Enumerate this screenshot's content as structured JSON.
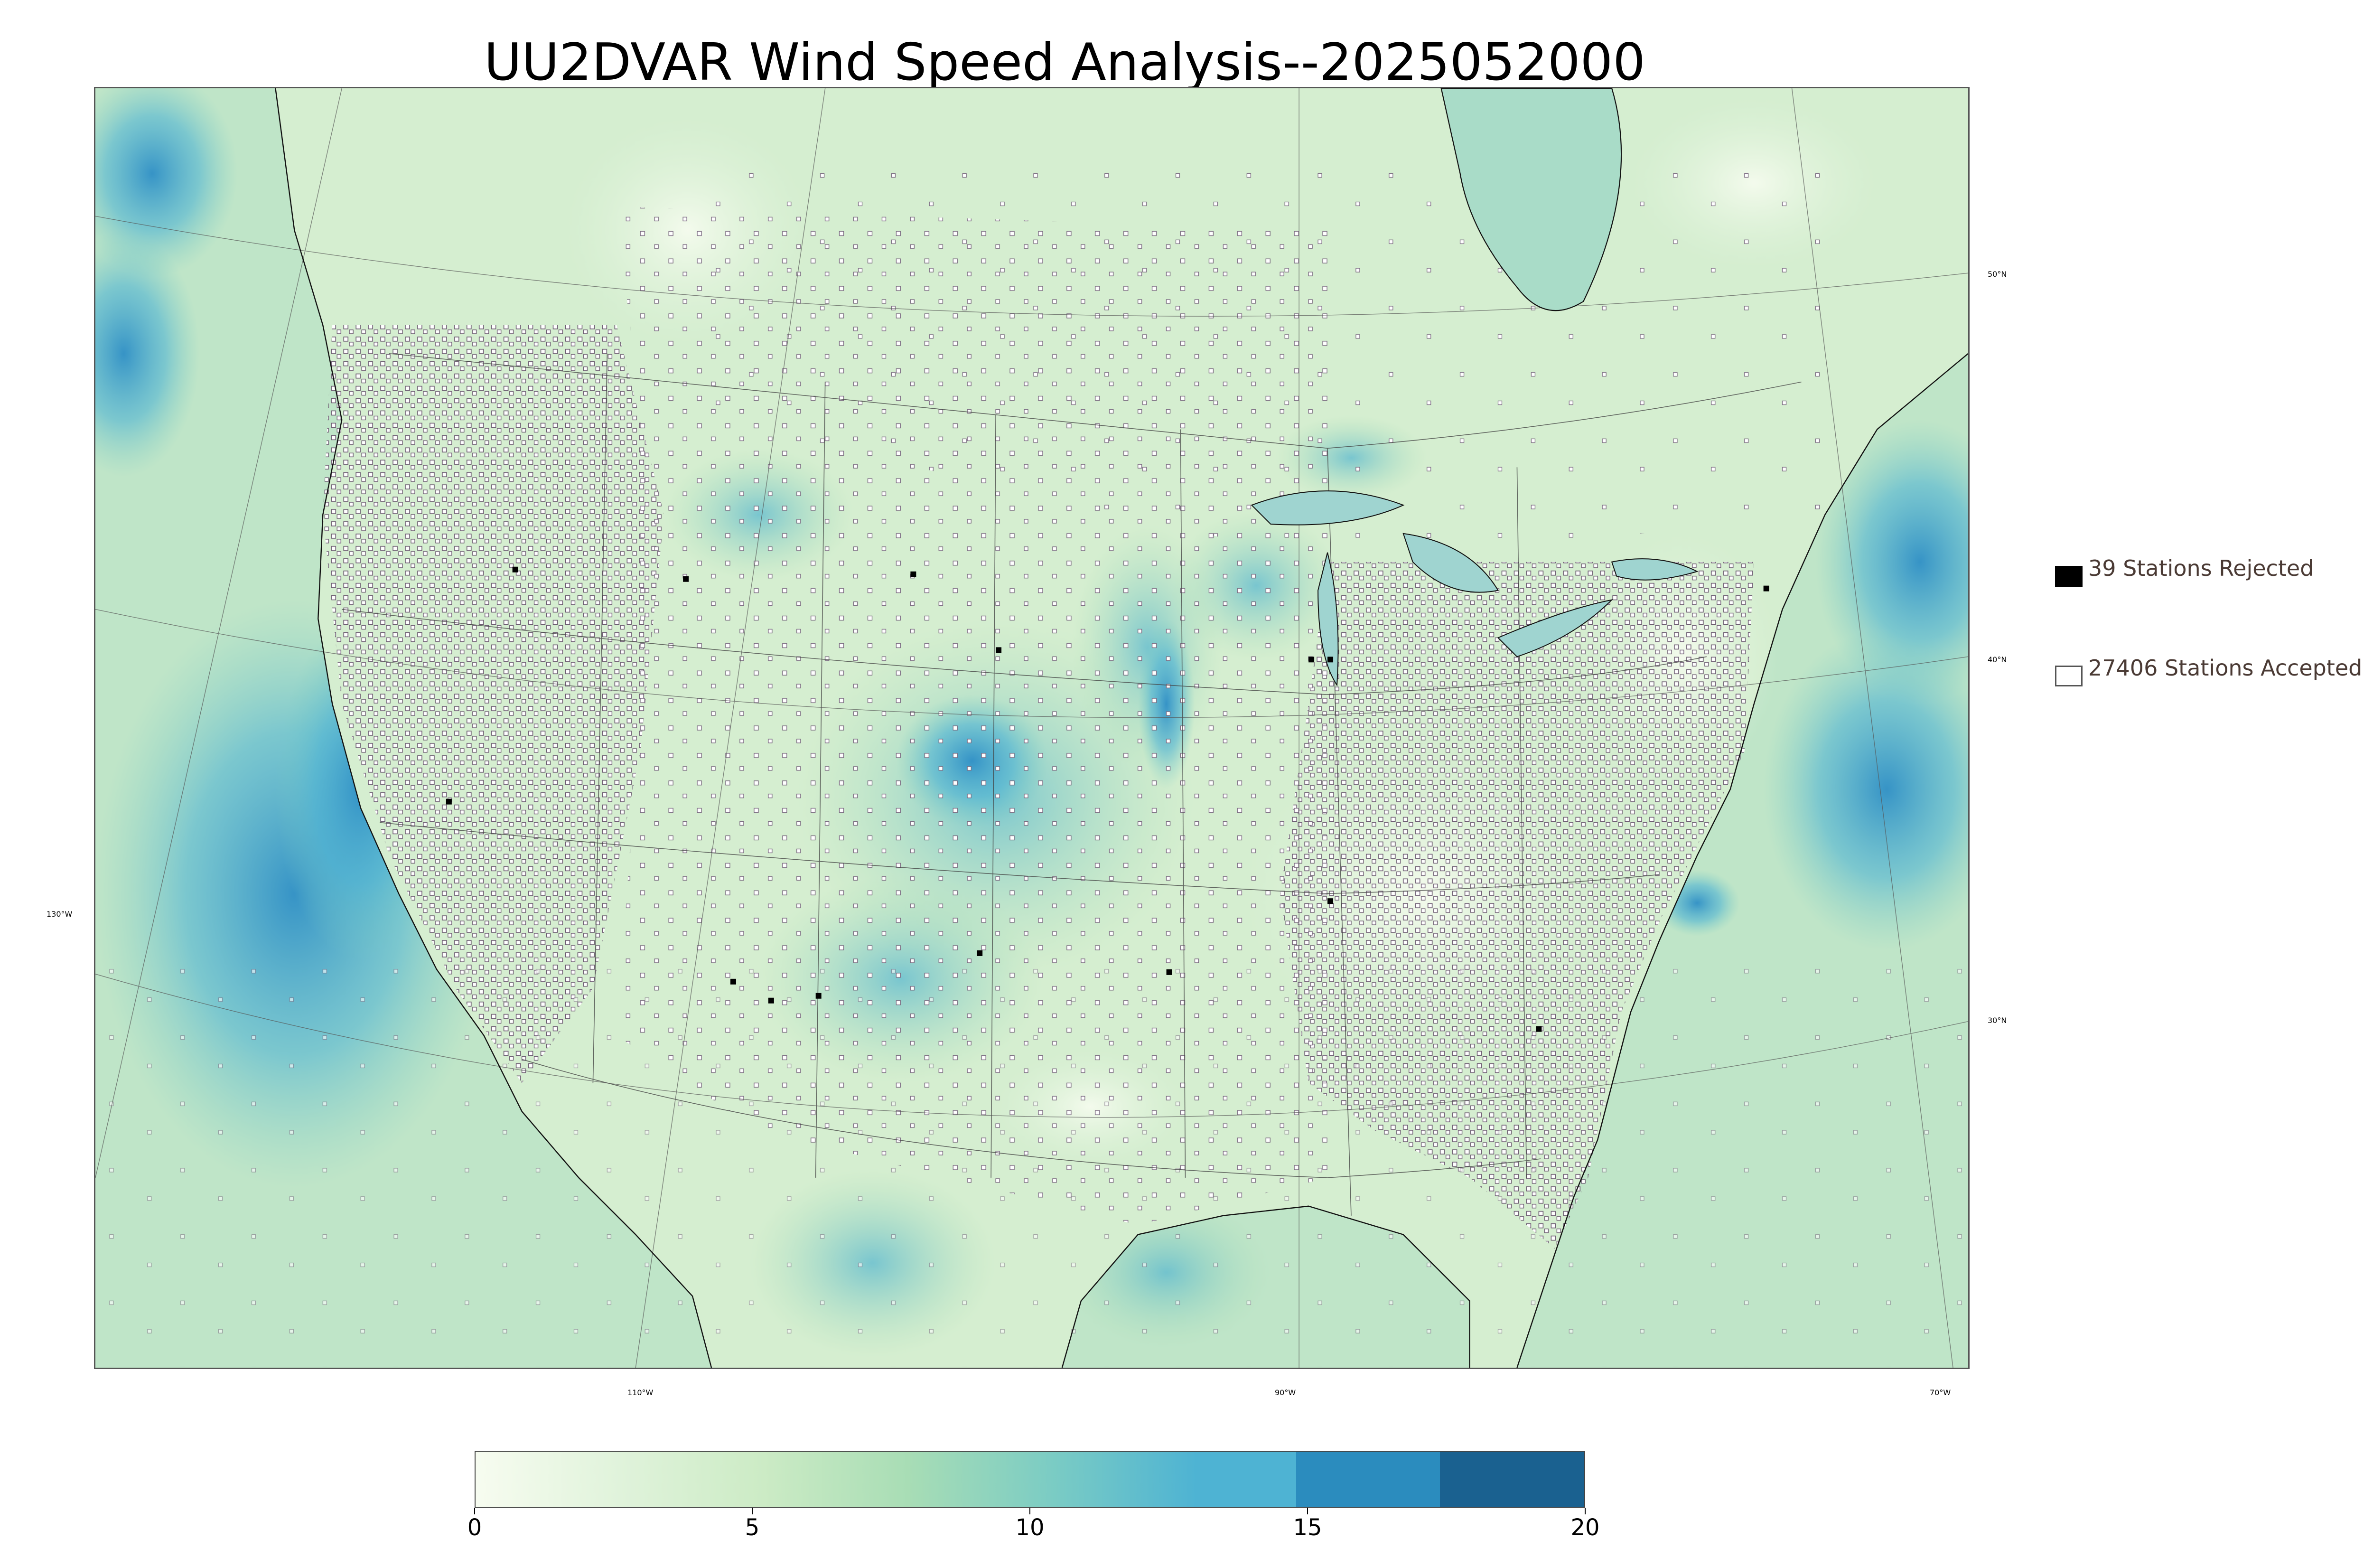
{
  "title": "UU2DVAR Wind Speed Analysis--2025052000",
  "legend": {
    "rejected": {
      "label": "39 Stations Rejected",
      "color": "#000000"
    },
    "accepted": {
      "label": "27406 Stations Accepted",
      "color": "#ffffff"
    }
  },
  "latitude_labels": [
    "50°N",
    "40°N",
    "30°N"
  ],
  "longitude_labels": [
    "130°W",
    "110°W",
    "90°W",
    "70°W"
  ],
  "colorbar": {
    "min": 0,
    "max": 20,
    "ticks": [
      "0",
      "5",
      "10",
      "15",
      "20"
    ],
    "colors": [
      "#f7fcf0",
      "#e0f3db",
      "#ccebc5",
      "#a8ddb5",
      "#7bccc4",
      "#4eb3d3",
      "#2b8cbe",
      "#1a6190"
    ]
  },
  "colors": {
    "land_base": "#d8efd2",
    "ocean_base": "#b9e2c4",
    "high_wind": "#3a9fd0",
    "station_outline": "#6b5a70"
  }
}
